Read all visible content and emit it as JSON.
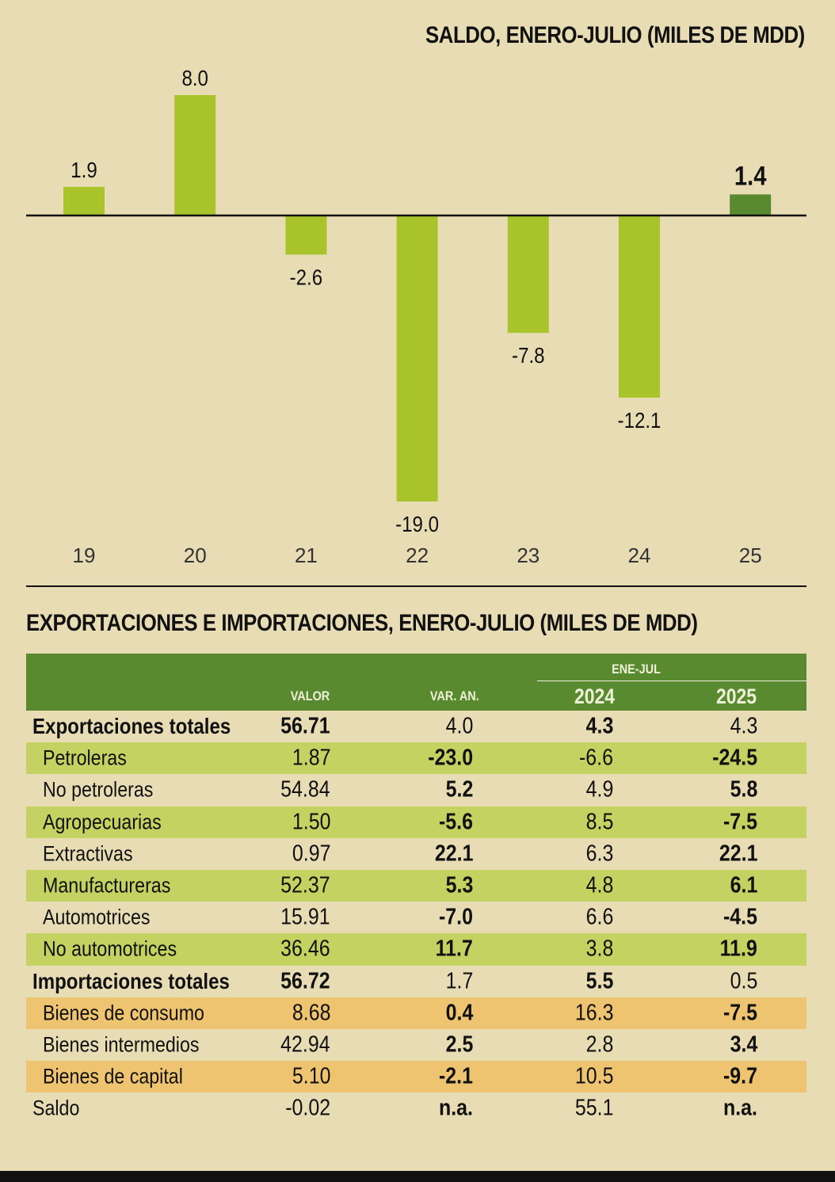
{
  "chart_data": {
    "type": "bar",
    "title": "SALDO, ENERO-JULIO (MILES DE MDD)",
    "categories": [
      "19",
      "20",
      "21",
      "22",
      "23",
      "24",
      "25"
    ],
    "values": [
      1.9,
      8.0,
      -2.6,
      -19.0,
      -7.8,
      -12.1,
      1.4
    ],
    "value_labels": [
      "1.9",
      "8.0",
      "-2.6",
      "-19.0",
      "-7.8",
      "-12.1",
      "1.4"
    ],
    "highlight_index": 6,
    "colors": {
      "bar": "#a8c42a",
      "highlight": "#5a8a30"
    },
    "ylim": [
      -19.0,
      8.0
    ],
    "xlabel": "",
    "ylabel": ""
  },
  "table": {
    "title": "EXPORTACIONES E IMPORTACIONES, ENERO-JULIO (MILES DE MDD)",
    "headers": {
      "valor": "VALOR",
      "var": "VAR. AN.",
      "group": "ENE-JUL",
      "y2024": "2024",
      "y2025": "2025"
    },
    "rows": [
      {
        "label": "Exportaciones totales",
        "valor": "56.71",
        "var": "4.0",
        "y2024": "4.3",
        "y2025": "4.3",
        "style": "total",
        "bg": ""
      },
      {
        "label": "Petroleras",
        "valor": "1.87",
        "var": "-23.0",
        "y2024": "-6.6",
        "y2025": "-24.5",
        "style": "item",
        "bg": "green"
      },
      {
        "label": "No petroleras",
        "valor": "54.84",
        "var": "5.2",
        "y2024": "4.9",
        "y2025": "5.8",
        "style": "item",
        "bg": ""
      },
      {
        "label": "Agropecuarias",
        "valor": "1.50",
        "var": "-5.6",
        "y2024": "8.5",
        "y2025": "-7.5",
        "style": "item",
        "bg": "green"
      },
      {
        "label": "Extractivas",
        "valor": "0.97",
        "var": "22.1",
        "y2024": "6.3",
        "y2025": "22.1",
        "style": "item",
        "bg": ""
      },
      {
        "label": "Manufactureras",
        "valor": "52.37",
        "var": "5.3",
        "y2024": "4.8",
        "y2025": "6.1",
        "style": "item",
        "bg": "green"
      },
      {
        "label": "Automotrices",
        "valor": "15.91",
        "var": "-7.0",
        "y2024": "6.6",
        "y2025": "-4.5",
        "style": "item",
        "bg": ""
      },
      {
        "label": "No automotrices",
        "valor": "36.46",
        "var": "11.7",
        "y2024": "3.8",
        "y2025": "11.9",
        "style": "item",
        "bg": "green"
      },
      {
        "label": "Importaciones totales",
        "valor": "56.72",
        "var": "1.7",
        "y2024": "5.5",
        "y2025": "0.5",
        "style": "total",
        "bg": ""
      },
      {
        "label": "Bienes de consumo",
        "valor": "8.68",
        "var": "0.4",
        "y2024": "16.3",
        "y2025": "-7.5",
        "style": "item",
        "bg": "orange"
      },
      {
        "label": "Bienes intermedios",
        "valor": "42.94",
        "var": "2.5",
        "y2024": "2.8",
        "y2025": "3.4",
        "style": "item",
        "bg": ""
      },
      {
        "label": "Bienes de capital",
        "valor": "5.10",
        "var": "-2.1",
        "y2024": "10.5",
        "y2025": "-9.7",
        "style": "item",
        "bg": "orange"
      },
      {
        "label": "Saldo",
        "valor": "-0.02",
        "var": "n.a.",
        "y2024": "55.1",
        "y2025": "n.a.",
        "style": "saldo",
        "bg": ""
      }
    ]
  }
}
